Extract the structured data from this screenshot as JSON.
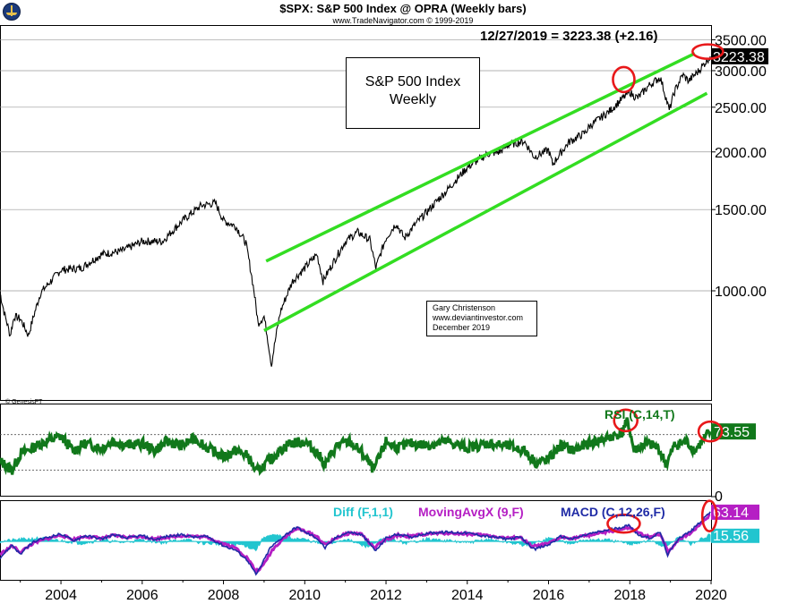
{
  "header": {
    "title": "$SPX:  S&P 500 Index @ OPRA  (Weekly bars)",
    "subtitle": "www.TradeNavigator.com © 1999-2019",
    "last_quote": "12/27/2019 = 3223.38 (+2.16)"
  },
  "label_box": {
    "line1": "S&P 500 Index",
    "line2": "Weekly"
  },
  "author_box": {
    "name": "Gary Christenson",
    "site": "www.deviantinvestor.com",
    "date": "December 2019"
  },
  "genesis": "© GenesisFT",
  "colors": {
    "price": "#000000",
    "channel": "#33dd22",
    "circle": "#e8181a",
    "rsi": "#11781b",
    "diff": "#22c5cf",
    "moving_avg": "#b51fc4",
    "macd": "#1f2ba6"
  },
  "chart_data": [
    {
      "type": "line",
      "title": "$SPX:  S&P 500 Index @ OPRA  (Weekly bars)",
      "y_scale": "log",
      "ylim": [
        580,
        3700
      ],
      "xlim": [
        2002.5,
        2020.0
      ],
      "y_ticks": [
        "3500.00",
        "3000.00",
        "2500.00",
        "2000.00",
        "1500.00",
        "1000.00"
      ],
      "y_tick_values": [
        3500,
        3000,
        2500,
        2000,
        1500,
        1000
      ],
      "x_ticks": [
        "2004",
        "2006",
        "2008",
        "2010",
        "2012",
        "2014",
        "2016",
        "2018",
        "2020"
      ],
      "x_tick_values": [
        2004,
        2006,
        2008,
        2010,
        2012,
        2014,
        2016,
        2018,
        2020
      ],
      "last_value_label": "3223.38",
      "series": [
        {
          "x": [
            2002.5,
            2002.6,
            2002.75,
            2002.85,
            2003.0,
            2003.2,
            2003.5,
            2004.0,
            2004.5,
            2005.0,
            2005.5,
            2006.0,
            2006.5,
            2007.0,
            2007.45,
            2007.8,
            2008.0,
            2008.3,
            2008.55,
            2008.75,
            2008.85,
            2009.0,
            2009.18,
            2009.4,
            2009.7,
            2010.0,
            2010.3,
            2010.45,
            2010.7,
            2011.0,
            2011.3,
            2011.6,
            2011.75,
            2012.0,
            2012.25,
            2012.45,
            2012.8,
            2013.0,
            2013.5,
            2014.0,
            2014.5,
            2014.8,
            2015.0,
            2015.4,
            2015.65,
            2016.0,
            2016.1,
            2016.5,
            2016.9,
            2017.0,
            2017.5,
            2018.0,
            2018.08,
            2018.2,
            2018.5,
            2018.75,
            2018.97,
            2019.1,
            2019.3,
            2019.45,
            2019.7,
            2019.98
          ],
          "values": [
            990,
            900,
            800,
            880,
            870,
            800,
            990,
            1110,
            1120,
            1200,
            1220,
            1280,
            1280,
            1420,
            1530,
            1550,
            1420,
            1380,
            1270,
            1000,
            850,
            880,
            690,
            900,
            1050,
            1120,
            1200,
            1050,
            1150,
            1280,
            1340,
            1290,
            1120,
            1300,
            1400,
            1300,
            1420,
            1480,
            1650,
            1850,
            1980,
            2000,
            2070,
            2110,
            1950,
            2020,
            1880,
            2100,
            2200,
            2270,
            2450,
            2700,
            2650,
            2620,
            2800,
            2900,
            2460,
            2700,
            2940,
            2850,
            3000,
            3223.38
          ]
        }
      ],
      "annotations": [
        "upper channel line",
        "lower channel line",
        "circle near 2017.8 peak",
        "circle at 12/2019 close"
      ]
    },
    {
      "type": "line",
      "title": "RSI (C,14,T)",
      "ylim": [
        0,
        100
      ],
      "y_ticks": [
        "0"
      ],
      "y_tick_values": [
        0
      ],
      "reference_lines": [
        30,
        70
      ],
      "last_value_label": "73.55",
      "series": [
        {
          "name": "RSI (C,14,T)",
          "x": [
            2002.5,
            2002.8,
            2003.0,
            2003.3,
            2003.6,
            2004.0,
            2004.3,
            2004.6,
            2005.0,
            2005.3,
            2005.6,
            2006.0,
            2006.3,
            2006.6,
            2007.0,
            2007.3,
            2007.6,
            2008.0,
            2008.3,
            2008.6,
            2008.8,
            2009.0,
            2009.3,
            2009.6,
            2010.0,
            2010.3,
            2010.5,
            2010.8,
            2011.1,
            2011.4,
            2011.7,
            2012.0,
            2012.3,
            2012.6,
            2013.0,
            2013.5,
            2014.0,
            2014.5,
            2015.0,
            2015.4,
            2015.7,
            2016.0,
            2016.3,
            2016.6,
            2017.0,
            2017.4,
            2017.8,
            2017.95,
            2018.1,
            2018.4,
            2018.7,
            2018.9,
            2019.1,
            2019.4,
            2019.6,
            2019.98
          ],
          "values": [
            40,
            30,
            48,
            55,
            62,
            68,
            52,
            60,
            55,
            63,
            58,
            60,
            52,
            62,
            58,
            66,
            55,
            45,
            52,
            46,
            28,
            35,
            48,
            60,
            62,
            50,
            36,
            58,
            62,
            50,
            30,
            62,
            55,
            60,
            58,
            62,
            55,
            60,
            57,
            52,
            38,
            42,
            58,
            52,
            60,
            65,
            72,
            86,
            52,
            60,
            55,
            36,
            58,
            62,
            52,
            73.55
          ]
        }
      ],
      "annotations": [
        "circle near 2017.9 RSI peak",
        "circle at 12/2019 RSI"
      ]
    },
    {
      "type": "line",
      "title": "MACD (C,12,26,F)",
      "ylim": [
        -90,
        95
      ],
      "last_value_labels": [
        "63.14",
        "15.56"
      ],
      "series": [
        {
          "name": "Diff (F,1,1)",
          "x": [
            2002.5,
            2003.0,
            2003.5,
            2004.0,
            2004.5,
            2005.0,
            2005.5,
            2006.0,
            2006.5,
            2007.0,
            2007.5,
            2008.0,
            2008.5,
            2008.8,
            2009.0,
            2009.3,
            2009.6,
            2010.0,
            2010.5,
            2011.0,
            2011.5,
            2012.0,
            2012.5,
            2013.0,
            2013.5,
            2014.0,
            2014.5,
            2015.0,
            2015.5,
            2016.0,
            2016.5,
            2017.0,
            2017.5,
            2018.0,
            2018.5,
            2018.9,
            2019.2,
            2019.5,
            2019.98
          ],
          "values": [
            0,
            5,
            8,
            2,
            -4,
            3,
            -2,
            4,
            -3,
            5,
            -4,
            -6,
            -8,
            -20,
            12,
            14,
            9,
            5,
            -8,
            6,
            -12,
            8,
            -4,
            6,
            2,
            -3,
            5,
            -2,
            -10,
            8,
            -3,
            4,
            3,
            -6,
            2,
            -15,
            12,
            -6,
            15.56
          ]
        },
        {
          "name": "MovingAvgX (9,F)",
          "x": [
            2002.5,
            2002.8,
            2003.0,
            2003.3,
            2003.6,
            2004.0,
            2004.3,
            2004.6,
            2005.0,
            2005.3,
            2005.6,
            2006.0,
            2006.3,
            2006.6,
            2007.0,
            2007.3,
            2007.6,
            2008.0,
            2008.3,
            2008.6,
            2008.8,
            2008.95,
            2009.2,
            2009.5,
            2009.8,
            2010.0,
            2010.3,
            2010.5,
            2010.8,
            2011.1,
            2011.4,
            2011.7,
            2012.0,
            2012.3,
            2012.6,
            2013.0,
            2013.5,
            2014.0,
            2014.5,
            2015.0,
            2015.3,
            2015.6,
            2016.0,
            2016.3,
            2016.6,
            2017.0,
            2017.4,
            2017.8,
            2018.0,
            2018.2,
            2018.5,
            2018.75,
            2018.95,
            2019.2,
            2019.5,
            2019.98
          ],
          "values": [
            -30,
            -10,
            -25,
            -5,
            5,
            15,
            5,
            12,
            8,
            14,
            10,
            12,
            6,
            10,
            14,
            12,
            10,
            -5,
            -15,
            -40,
            -70,
            -60,
            -20,
            10,
            30,
            25,
            12,
            -8,
            10,
            20,
            18,
            -15,
            5,
            15,
            12,
            18,
            20,
            18,
            14,
            8,
            10,
            -12,
            -5,
            10,
            8,
            15,
            22,
            28,
            32,
            20,
            10,
            18,
            -25,
            5,
            20,
            63.14
          ]
        },
        {
          "name": "MACD (C,12,26,F)",
          "x": [
            2002.5,
            2002.8,
            2003.0,
            2003.3,
            2003.6,
            2004.0,
            2004.3,
            2004.6,
            2005.0,
            2005.3,
            2005.6,
            2006.0,
            2006.3,
            2006.6,
            2007.0,
            2007.3,
            2007.6,
            2008.0,
            2008.3,
            2008.6,
            2008.8,
            2008.9,
            2009.15,
            2009.5,
            2009.8,
            2010.0,
            2010.3,
            2010.5,
            2010.8,
            2011.1,
            2011.4,
            2011.75,
            2012.0,
            2012.3,
            2012.6,
            2013.0,
            2013.5,
            2014.0,
            2014.5,
            2015.0,
            2015.3,
            2015.65,
            2016.0,
            2016.3,
            2016.6,
            2017.0,
            2017.4,
            2017.8,
            2018.0,
            2018.2,
            2018.5,
            2018.75,
            2018.93,
            2019.2,
            2019.5,
            2019.98
          ],
          "values": [
            -38,
            -8,
            -30,
            -2,
            8,
            18,
            2,
            14,
            6,
            16,
            8,
            14,
            4,
            12,
            16,
            10,
            12,
            -10,
            -20,
            -45,
            -78,
            -62,
            -15,
            14,
            34,
            22,
            8,
            -15,
            12,
            22,
            16,
            -22,
            8,
            18,
            10,
            20,
            22,
            20,
            12,
            6,
            10,
            -18,
            -8,
            12,
            6,
            18,
            26,
            34,
            38,
            16,
            8,
            22,
            -32,
            8,
            24,
            70
          ]
        }
      ],
      "annotations": [
        "circle near 2017.9 MACD peak",
        "circle at 12/2019 MACD"
      ]
    }
  ]
}
